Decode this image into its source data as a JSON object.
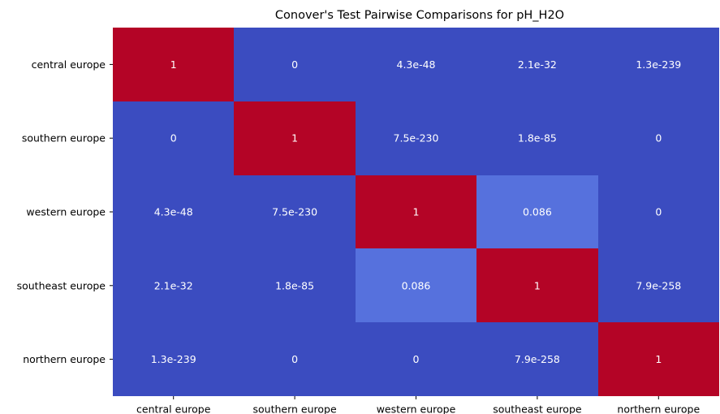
{
  "chart_data": {
    "type": "heatmap",
    "title": "Conover's Test Pairwise Comparisons for pH_H2O",
    "xlabel": "",
    "ylabel": "",
    "categories_x": [
      "central europe",
      "southern europe",
      "western europe",
      "southeast europe",
      "northern europe"
    ],
    "categories_y": [
      "central europe",
      "southern europe",
      "western europe",
      "southeast europe",
      "northern europe"
    ],
    "values": [
      [
        1,
        0,
        4.3e-48,
        2.1e-32,
        1.3e-239
      ],
      [
        0,
        1,
        7.5e-230,
        1.8e-85,
        0
      ],
      [
        4.3e-48,
        7.5e-230,
        1,
        0.086,
        0
      ],
      [
        2.1e-32,
        1.8e-85,
        0.086,
        1,
        7.9e-258
      ],
      [
        1.3e-239,
        0,
        0,
        7.9e-258,
        1
      ]
    ],
    "annotations": [
      [
        "1",
        "0",
        "4.3e-48",
        "2.1e-32",
        "1.3e-239"
      ],
      [
        "0",
        "1",
        "7.5e-230",
        "1.8e-85",
        "0"
      ],
      [
        "4.3e-48",
        "7.5e-230",
        "1",
        "0.086",
        "0"
      ],
      [
        "2.1e-32",
        "1.8e-85",
        "0.086",
        "1",
        "7.9e-258"
      ],
      [
        "1.3e-239",
        "0",
        "0",
        "7.9e-258",
        "1"
      ]
    ],
    "colormap": "coolwarm",
    "color_low": "#3b4cc0",
    "color_high": "#b40426",
    "vmin": 0,
    "vmax": 1,
    "colorbar": false,
    "grid": false
  }
}
